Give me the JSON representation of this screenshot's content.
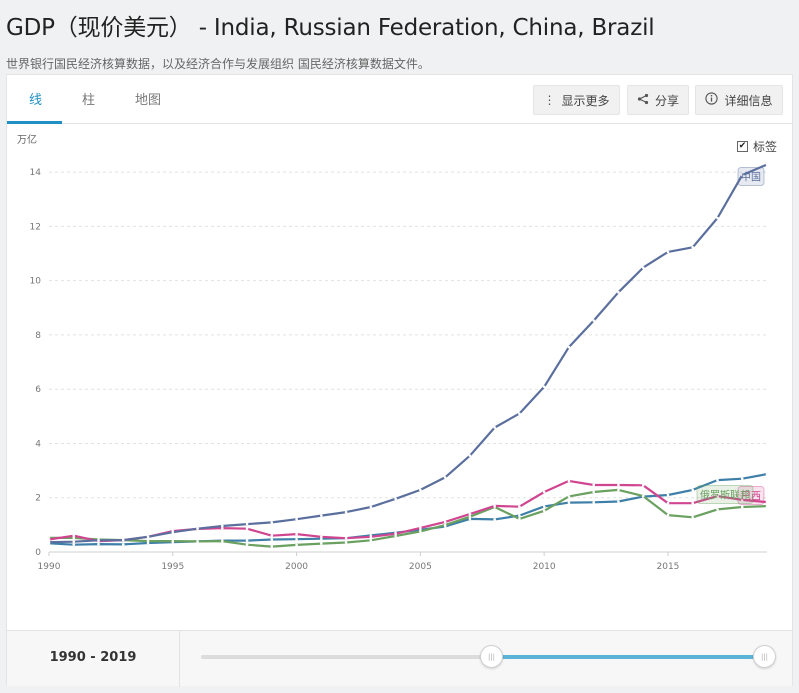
{
  "header": {
    "title": "GDP（现价美元） - India, Russian Federation, China, Brazil",
    "subtitle": "世界银行国民经济核算数据，以及经济合作与发展组织 国民经济核算数据文件。"
  },
  "tabs": [
    {
      "label": "线",
      "active": true
    },
    {
      "label": "柱",
      "active": false
    },
    {
      "label": "地图",
      "active": false
    }
  ],
  "toolbar": {
    "more_label": "显示更多",
    "share_label": "分享",
    "info_label": "详细信息",
    "more_icon": "kebab-icon",
    "share_icon": "share-icon",
    "info_icon": "info-icon"
  },
  "labels_toggle": {
    "label": "标签",
    "checked": true
  },
  "chart_data": {
    "type": "line",
    "title": "",
    "ylabel": "万亿",
    "xlabel": "",
    "ylim": [
      0,
      15
    ],
    "xlim": [
      1990,
      2019
    ],
    "yticks": [
      0,
      2,
      4,
      6,
      8,
      10,
      12,
      14
    ],
    "xticks": [
      1990,
      1995,
      2000,
      2005,
      2010,
      2015
    ],
    "grid": true,
    "x": [
      1990,
      1991,
      1992,
      1993,
      1994,
      1995,
      1996,
      1997,
      1998,
      1999,
      2000,
      2001,
      2002,
      2003,
      2004,
      2005,
      2006,
      2007,
      2008,
      2009,
      2010,
      2011,
      2012,
      2013,
      2014,
      2015,
      2016,
      2017,
      2018,
      2019
    ],
    "series": [
      {
        "name": "中国",
        "color": "#5b6f9e",
        "label": "中国",
        "values": [
          0.36,
          0.38,
          0.43,
          0.44,
          0.56,
          0.73,
          0.86,
          0.96,
          1.03,
          1.09,
          1.21,
          1.34,
          1.47,
          1.66,
          1.96,
          2.29,
          2.75,
          3.55,
          4.59,
          5.1,
          6.09,
          7.55,
          8.53,
          9.57,
          10.48,
          11.06,
          11.23,
          12.31,
          13.89,
          14.28
        ]
      },
      {
        "name": "巴西",
        "color": "#d04590",
        "label": "巴西",
        "values": [
          0.46,
          0.6,
          0.4,
          0.44,
          0.56,
          0.77,
          0.85,
          0.88,
          0.86,
          0.6,
          0.66,
          0.56,
          0.51,
          0.56,
          0.67,
          0.89,
          1.11,
          1.4,
          1.7,
          1.67,
          2.21,
          2.62,
          2.47,
          2.47,
          2.46,
          1.8,
          1.8,
          2.06,
          1.92,
          1.84
        ]
      },
      {
        "name": "俄罗斯联邦",
        "color": "#6aa060",
        "label": "俄罗斯联邦",
        "values": [
          0.52,
          0.52,
          0.46,
          0.44,
          0.4,
          0.4,
          0.39,
          0.4,
          0.27,
          0.2,
          0.26,
          0.31,
          0.35,
          0.43,
          0.59,
          0.76,
          0.99,
          1.3,
          1.66,
          1.22,
          1.52,
          2.05,
          2.21,
          2.29,
          2.06,
          1.36,
          1.28,
          1.57,
          1.66,
          1.69
        ]
      },
      {
        "name": "India",
        "color": "#3d7fa8",
        "label": "",
        "values": [
          0.32,
          0.27,
          0.29,
          0.28,
          0.33,
          0.36,
          0.39,
          0.42,
          0.42,
          0.46,
          0.47,
          0.49,
          0.51,
          0.61,
          0.71,
          0.82,
          0.94,
          1.22,
          1.2,
          1.34,
          1.68,
          1.82,
          1.83,
          1.86,
          2.04,
          2.1,
          2.29,
          2.65,
          2.7,
          2.87
        ]
      }
    ]
  },
  "footer": {
    "range_text": "1990 - 2019",
    "handle_icon": "grip-icon",
    "handle_glyph": "|||",
    "range_selected": [
      1990,
      2019
    ]
  }
}
